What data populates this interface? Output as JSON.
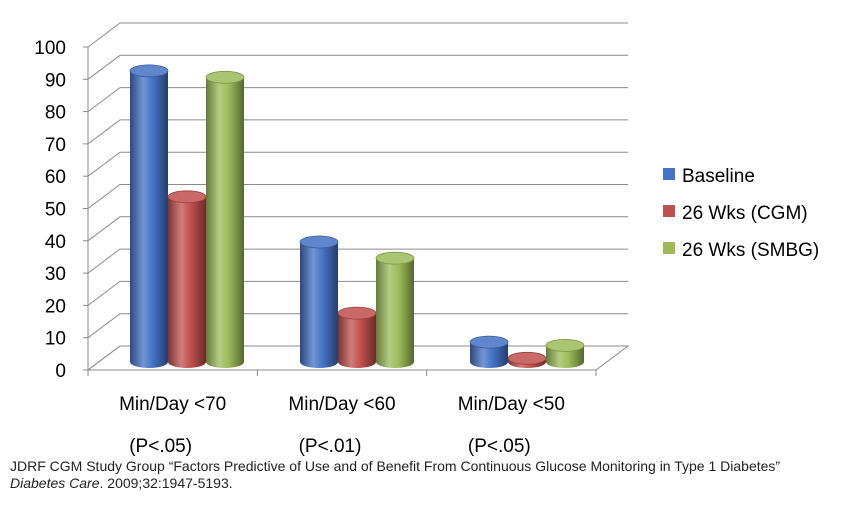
{
  "chart_data": {
    "type": "bar",
    "categories": [
      "Min/Day <70",
      "Min/Day <60",
      "Min/Day <50"
    ],
    "category_notes": [
      "(P<.05)",
      "(P<.01)",
      "(P<.05)"
    ],
    "series": [
      {
        "name": "Baseline",
        "color": "#4472C4",
        "values": [
          92,
          39,
          8
        ]
      },
      {
        "name": "26 Wks (CGM)",
        "color": "#C0504D",
        "values": [
          53,
          17,
          3
        ]
      },
      {
        "name": "26 Wks (SMBG)",
        "color": "#9BBB59",
        "values": [
          90,
          34,
          7
        ]
      }
    ],
    "y_ticks": [
      "0",
      "10",
      "20",
      "30",
      "40",
      "50",
      "60",
      "70",
      "80",
      "90",
      "100"
    ],
    "ylim": [
      0,
      100
    ],
    "grid": true,
    "legend_position": "right",
    "three_d": true
  },
  "citation": {
    "text_1": "JDRF CGM Study Group “Factors Predictive of Use and of Benefit From Continuous Glucose Monitoring in Type 1 Diabetes” ",
    "journal": "Diabetes Care",
    "text_2": ". 2009;32:1947-5193."
  }
}
